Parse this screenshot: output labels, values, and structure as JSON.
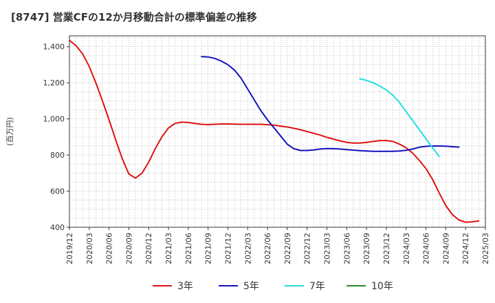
{
  "title": "[8747]  営業CFの12か月移動合計の標準偏差の推移",
  "chart_data": {
    "type": "line",
    "ylabel": "(百万円)",
    "ylim": [
      400,
      1460
    ],
    "yticks": [
      400,
      600,
      800,
      1000,
      1200,
      1400
    ],
    "ytick_labels": [
      "400",
      "600",
      "800",
      "1,000",
      "1,200",
      "1,400"
    ],
    "xticks": [
      "2019/12",
      "2020/03",
      "2020/06",
      "2020/09",
      "2020/12",
      "2021/03",
      "2021/06",
      "2021/09",
      "2021/12",
      "2022/03",
      "2022/06",
      "2022/09",
      "2022/12",
      "2023/03",
      "2023/06",
      "2023/09",
      "2023/12",
      "2024/03",
      "2024/06",
      "2024/09",
      "2024/12",
      "2025/03"
    ],
    "grid": true,
    "legend_position": "bottom",
    "series": [
      {
        "name": "3年",
        "color": "#dd1111",
        "start": "2019/12",
        "values": [
          1435,
          1405,
          1360,
          1290,
          1200,
          1100,
          995,
          885,
          780,
          695,
          672,
          700,
          760,
          835,
          900,
          950,
          975,
          982,
          980,
          975,
          970,
          968,
          970,
          972,
          972,
          971,
          970,
          970,
          970,
          970,
          968,
          965,
          960,
          955,
          948,
          940,
          930,
          920,
          910,
          898,
          888,
          878,
          870,
          866,
          866,
          870,
          875,
          880,
          880,
          875,
          860,
          840,
          810,
          770,
          725,
          665,
          590,
          520,
          470,
          440,
          428,
          430,
          435
        ]
      },
      {
        "name": "5年",
        "color": "#1111bb",
        "start": "2021/08",
        "values": [
          1345,
          1343,
          1335,
          1320,
          1300,
          1270,
          1225,
          1165,
          1105,
          1045,
          995,
          950,
          905,
          860,
          835,
          825,
          825,
          828,
          833,
          836,
          835,
          833,
          830,
          827,
          824,
          822,
          820,
          820,
          820,
          820,
          822,
          826,
          833,
          843,
          848,
          850,
          850,
          849,
          846,
          844
        ]
      },
      {
        "name": "7年",
        "color": "#22dddd",
        "start": "2023/08",
        "values": [
          1222,
          1213,
          1200,
          1182,
          1160,
          1130,
          1090,
          1040,
          990,
          940,
          890,
          840,
          792
        ]
      },
      {
        "name": "10年",
        "color": "#228b22",
        "start": "2024/09",
        "values": []
      }
    ]
  }
}
